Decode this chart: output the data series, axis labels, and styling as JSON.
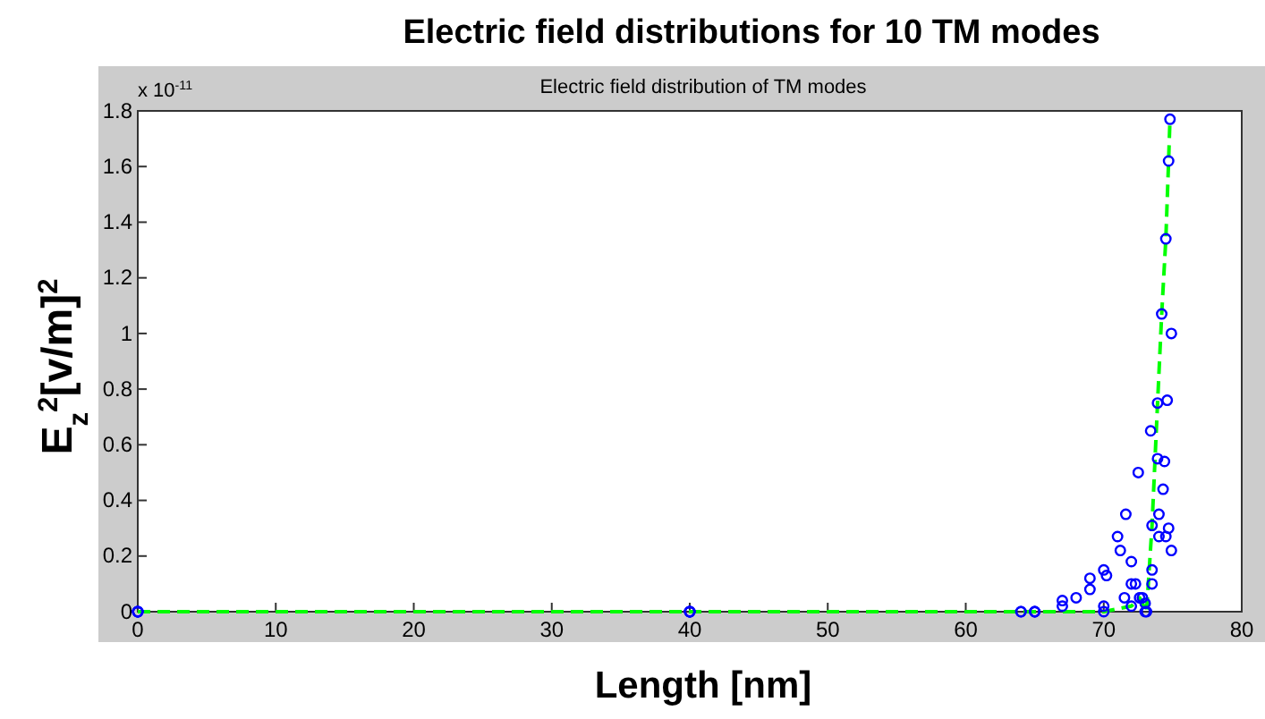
{
  "chart_data": {
    "type": "scatter",
    "title": "Electric field distributions for 10 TM modes",
    "subtitle": "Electric field distribution of TM modes",
    "xlabel": "Length [nm]",
    "ylabel": "E$_{z}$$^{2}$[v/m]$^{2}$",
    "annotations": [
      "x 10$^{-11}$"
    ],
    "xlim": [
      0,
      80
    ],
    "xticks": [
      0,
      10,
      20,
      30,
      40,
      50,
      60,
      70,
      80
    ],
    "ylim": [
      0,
      1.8
    ],
    "yticks": [
      0,
      0.2,
      0.4,
      0.6,
      0.8,
      1,
      1.2,
      1.4,
      1.6,
      1.8
    ],
    "grid": false,
    "marker": "circle",
    "series": [
      {
        "type": "line",
        "color": "#00ff00",
        "line_style": "dashed",
        "marker": "none",
        "x": [
          0,
          40,
          65,
          70,
          72,
          72.6,
          73.1,
          73.5,
          73.9,
          74.2,
          74.5,
          74.7,
          74.8
        ],
        "values": [
          0,
          0,
          0,
          0,
          0.02,
          0.05,
          0,
          0.31,
          0.75,
          1.07,
          1.34,
          1.62,
          1.77
        ]
      },
      {
        "color": "#0000ff",
        "x": [
          0,
          40,
          65,
          70,
          72,
          72.6,
          73.1,
          73.5,
          73.9,
          74.2,
          74.5,
          74.7,
          74.8
        ],
        "values": [
          0,
          0,
          0,
          0,
          0.02,
          0.05,
          0,
          0.31,
          0.75,
          1.07,
          1.34,
          1.62,
          1.77
        ]
      },
      {
        "color": "#0000ff",
        "x": [
          0,
          40,
          65,
          70,
          72,
          73,
          73.5,
          74,
          74.4,
          74.6,
          74.9
        ],
        "values": [
          0,
          0,
          0,
          0.02,
          0.1,
          0,
          0.15,
          0.35,
          0.54,
          0.76,
          1
        ]
      },
      {
        "color": "#0000ff",
        "x": [
          0,
          40,
          64,
          67,
          69,
          71,
          71.6,
          72.5,
          73.4,
          73.9,
          74.3,
          74.7
        ],
        "values": [
          0,
          0,
          0,
          0.02,
          0.08,
          0.27,
          0.35,
          0.5,
          0.65,
          0.55,
          0.44,
          0.3
        ]
      },
      {
        "color": "#0000ff",
        "x": [
          0,
          40,
          65,
          68,
          70,
          71.2,
          72,
          72.8,
          73.5,
          74,
          74.5,
          74.9
        ],
        "values": [
          0,
          0,
          0,
          0.05,
          0.15,
          0.22,
          0.18,
          0.05,
          0.1,
          0.27,
          0.27,
          0.22
        ]
      },
      {
        "color": "#0000ff",
        "x": [
          0,
          40,
          64,
          67,
          69,
          70.2,
          71.5,
          72.3,
          73
        ],
        "values": [
          0,
          0,
          0,
          0.04,
          0.12,
          0.13,
          0.05,
          0.1,
          0.03
        ]
      }
    ]
  }
}
